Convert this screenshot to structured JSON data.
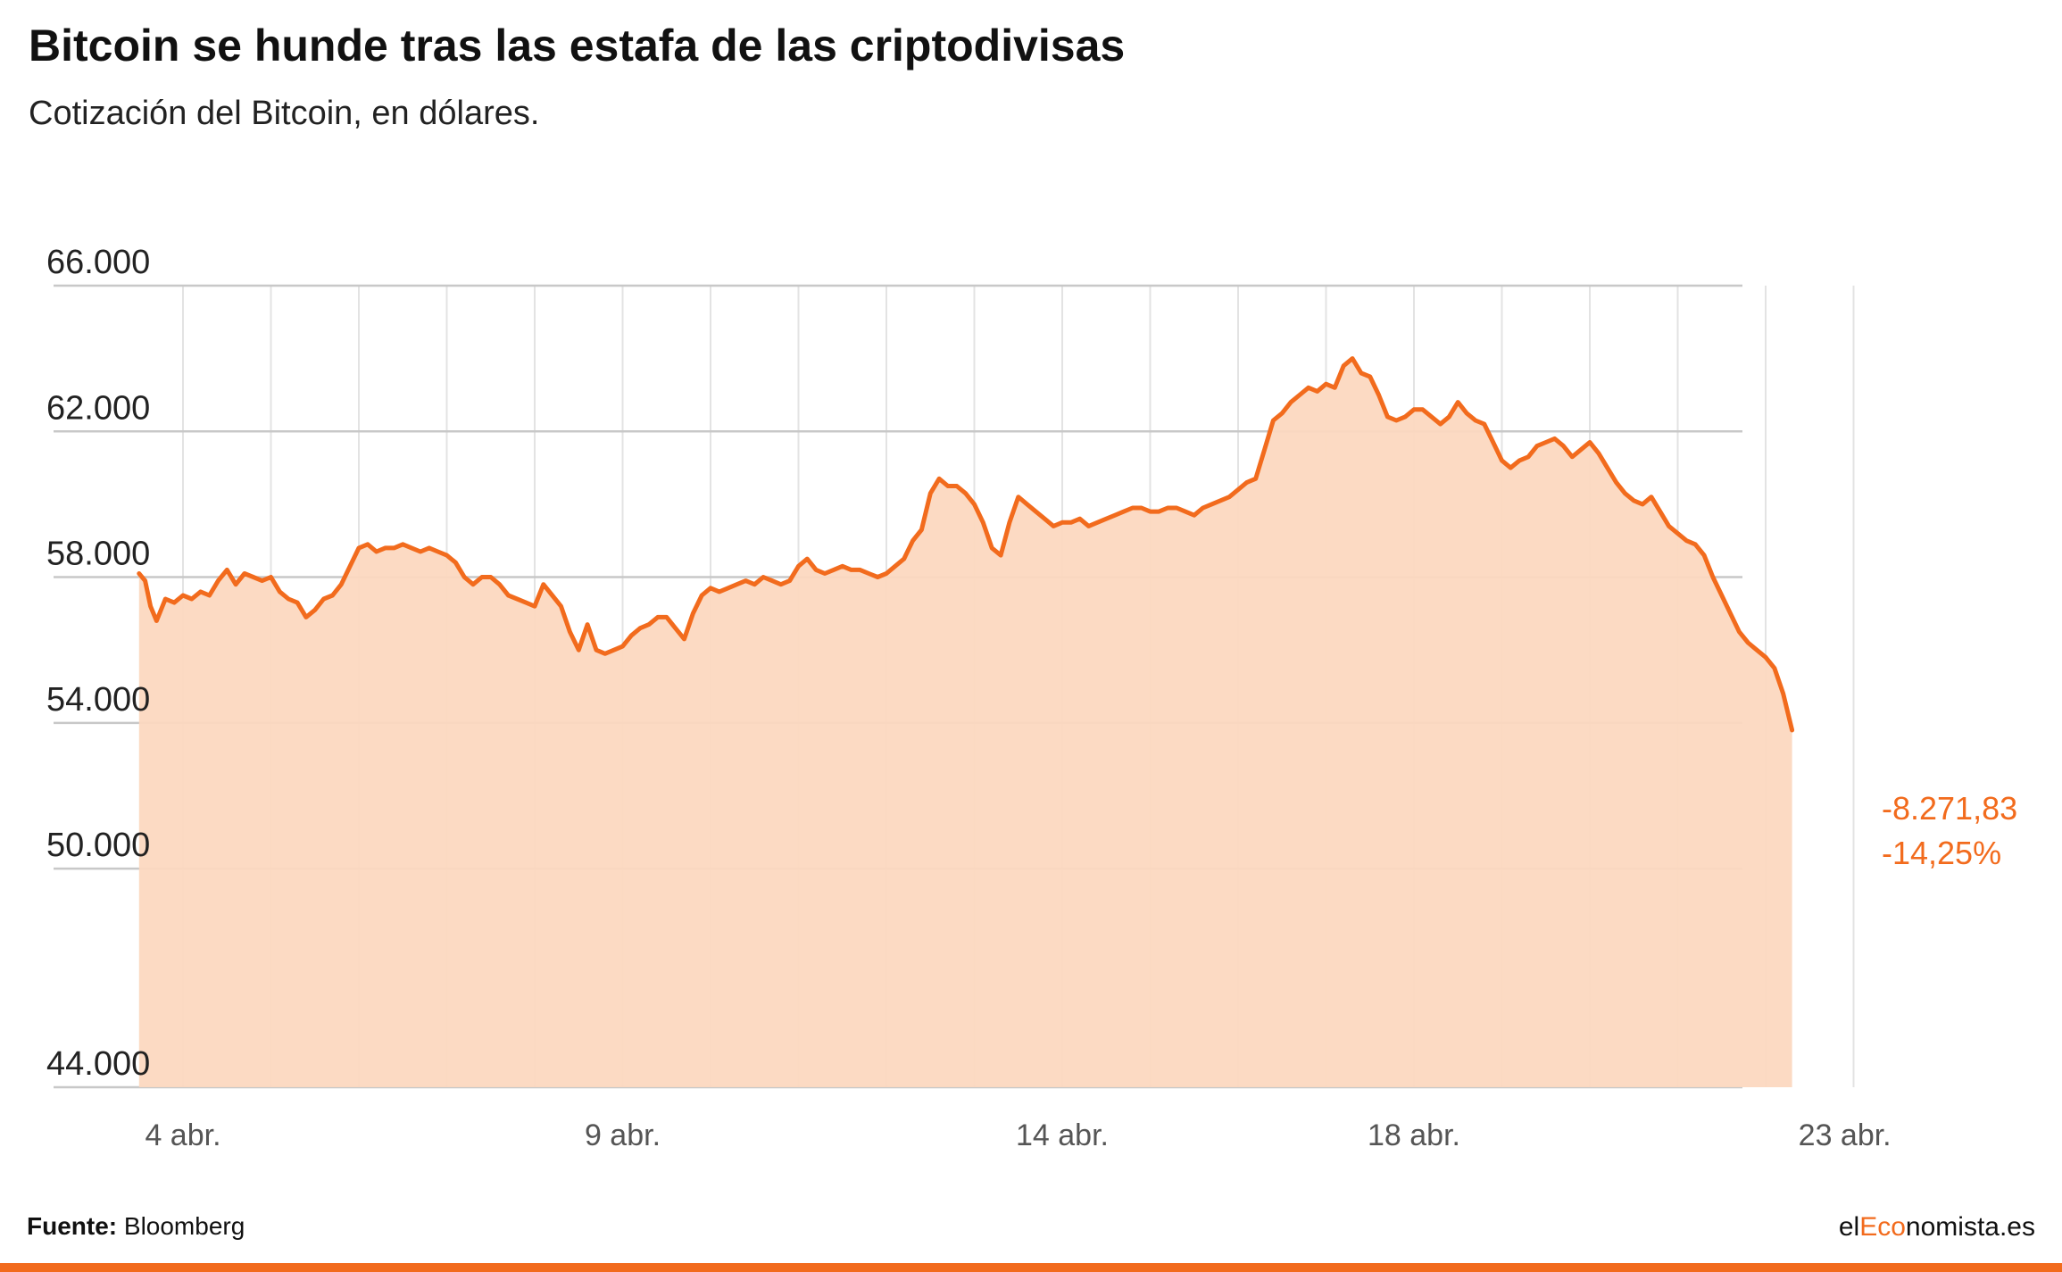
{
  "title": "Bitcoin se hunde tras las estafa de las criptodivisas",
  "subtitle": "Cotización del Bitcoin, en dólares.",
  "source_label": "Fuente:",
  "source_value": "Bloomberg",
  "brand": {
    "prefix": "el",
    "accent": "Eco",
    "suffix": "nomista.es"
  },
  "colors": {
    "line": "#f26b1d",
    "area": "#fcd8c0",
    "grid": "#c8c8c8",
    "annotation": "#f26b1d",
    "bar": "#f26b1d"
  },
  "annotation": {
    "change": "-8.271,83",
    "percent": "-14,25%"
  },
  "chart_data": {
    "type": "area",
    "title": "Bitcoin se hunde tras las estafa de las criptodivisas",
    "subtitle": "Cotización del Bitcoin, en dólares.",
    "xlabel": "",
    "ylabel": "",
    "x_unit": "days from 3 abr.",
    "xlim": [
      0,
      19.9
    ],
    "ylim": [
      44000,
      66000
    ],
    "y_ticks": [
      44000,
      50000,
      54000,
      58000,
      62000,
      66000
    ],
    "y_tick_labels": [
      "44.000",
      "50.000",
      "54.000",
      "58.000",
      "62.000",
      "66.000"
    ],
    "x_tick_labels": [
      {
        "x": 0.5,
        "label": "4 abr."
      },
      {
        "x": 5.5,
        "label": "9 abr."
      },
      {
        "x": 10.5,
        "label": "14 abr."
      },
      {
        "x": 14.5,
        "label": "18 abr."
      },
      {
        "x": 19.4,
        "label": "23 abr."
      }
    ],
    "grid": true,
    "series": [
      {
        "values": [
          [
            0.0,
            58100
          ],
          [
            0.07,
            57900
          ],
          [
            0.13,
            57200
          ],
          [
            0.2,
            56800
          ],
          [
            0.3,
            57400
          ],
          [
            0.4,
            57300
          ],
          [
            0.5,
            57500
          ],
          [
            0.6,
            57400
          ],
          [
            0.7,
            57600
          ],
          [
            0.8,
            57500
          ],
          [
            0.9,
            57900
          ],
          [
            1.0,
            58200
          ],
          [
            1.1,
            57800
          ],
          [
            1.2,
            58100
          ],
          [
            1.3,
            58000
          ],
          [
            1.4,
            57900
          ],
          [
            1.5,
            58000
          ],
          [
            1.6,
            57600
          ],
          [
            1.7,
            57400
          ],
          [
            1.8,
            57300
          ],
          [
            1.9,
            56900
          ],
          [
            2.0,
            57100
          ],
          [
            2.1,
            57400
          ],
          [
            2.2,
            57500
          ],
          [
            2.3,
            57800
          ],
          [
            2.4,
            58300
          ],
          [
            2.5,
            58800
          ],
          [
            2.6,
            58900
          ],
          [
            2.7,
            58700
          ],
          [
            2.8,
            58800
          ],
          [
            2.9,
            58800
          ],
          [
            3.0,
            58900
          ],
          [
            3.1,
            58800
          ],
          [
            3.2,
            58700
          ],
          [
            3.3,
            58800
          ],
          [
            3.4,
            58700
          ],
          [
            3.5,
            58600
          ],
          [
            3.6,
            58400
          ],
          [
            3.7,
            58000
          ],
          [
            3.8,
            57800
          ],
          [
            3.9,
            58000
          ],
          [
            4.0,
            58000
          ],
          [
            4.1,
            57800
          ],
          [
            4.2,
            57500
          ],
          [
            4.3,
            57400
          ],
          [
            4.4,
            57300
          ],
          [
            4.5,
            57200
          ],
          [
            4.6,
            57800
          ],
          [
            4.7,
            57500
          ],
          [
            4.8,
            57200
          ],
          [
            4.9,
            56500
          ],
          [
            5.0,
            56000
          ],
          [
            5.1,
            56700
          ],
          [
            5.2,
            56000
          ],
          [
            5.3,
            55900
          ],
          [
            5.4,
            56000
          ],
          [
            5.5,
            56100
          ],
          [
            5.6,
            56400
          ],
          [
            5.7,
            56600
          ],
          [
            5.8,
            56700
          ],
          [
            5.9,
            56900
          ],
          [
            6.0,
            56900
          ],
          [
            6.1,
            56600
          ],
          [
            6.2,
            56300
          ],
          [
            6.3,
            57000
          ],
          [
            6.4,
            57500
          ],
          [
            6.5,
            57700
          ],
          [
            6.6,
            57600
          ],
          [
            6.7,
            57700
          ],
          [
            6.8,
            57800
          ],
          [
            6.9,
            57900
          ],
          [
            7.0,
            57800
          ],
          [
            7.1,
            58000
          ],
          [
            7.2,
            57900
          ],
          [
            7.3,
            57800
          ],
          [
            7.4,
            57900
          ],
          [
            7.5,
            58300
          ],
          [
            7.6,
            58500
          ],
          [
            7.7,
            58200
          ],
          [
            7.8,
            58100
          ],
          [
            7.9,
            58200
          ],
          [
            8.0,
            58300
          ],
          [
            8.1,
            58200
          ],
          [
            8.2,
            58200
          ],
          [
            8.3,
            58100
          ],
          [
            8.4,
            58000
          ],
          [
            8.5,
            58100
          ],
          [
            8.6,
            58300
          ],
          [
            8.7,
            58500
          ],
          [
            8.8,
            59000
          ],
          [
            8.9,
            59300
          ],
          [
            9.0,
            60300
          ],
          [
            9.1,
            60700
          ],
          [
            9.2,
            60500
          ],
          [
            9.3,
            60500
          ],
          [
            9.4,
            60300
          ],
          [
            9.5,
            60000
          ],
          [
            9.6,
            59500
          ],
          [
            9.7,
            58800
          ],
          [
            9.8,
            58600
          ],
          [
            9.9,
            59500
          ],
          [
            10.0,
            60200
          ],
          [
            10.1,
            60000
          ],
          [
            10.2,
            59800
          ],
          [
            10.3,
            59600
          ],
          [
            10.4,
            59400
          ],
          [
            10.5,
            59500
          ],
          [
            10.6,
            59500
          ],
          [
            10.7,
            59600
          ],
          [
            10.8,
            59400
          ],
          [
            10.9,
            59500
          ],
          [
            11.0,
            59600
          ],
          [
            11.1,
            59700
          ],
          [
            11.2,
            59800
          ],
          [
            11.3,
            59900
          ],
          [
            11.4,
            59900
          ],
          [
            11.5,
            59800
          ],
          [
            11.6,
            59800
          ],
          [
            11.7,
            59900
          ],
          [
            11.8,
            59900
          ],
          [
            11.9,
            59800
          ],
          [
            12.0,
            59700
          ],
          [
            12.1,
            59900
          ],
          [
            12.2,
            60000
          ],
          [
            12.3,
            60100
          ],
          [
            12.4,
            60200
          ],
          [
            12.5,
            60400
          ],
          [
            12.6,
            60600
          ],
          [
            12.7,
            60700
          ],
          [
            12.8,
            61500
          ],
          [
            12.9,
            62300
          ],
          [
            13.0,
            62500
          ],
          [
            13.1,
            62800
          ],
          [
            13.2,
            63000
          ],
          [
            13.3,
            63200
          ],
          [
            13.4,
            63100
          ],
          [
            13.5,
            63300
          ],
          [
            13.6,
            63200
          ],
          [
            13.7,
            63800
          ],
          [
            13.8,
            64000
          ],
          [
            13.9,
            63600
          ],
          [
            14.0,
            63500
          ],
          [
            14.1,
            63000
          ],
          [
            14.2,
            62400
          ],
          [
            14.3,
            62300
          ],
          [
            14.4,
            62400
          ],
          [
            14.5,
            62600
          ],
          [
            14.6,
            62600
          ],
          [
            14.7,
            62400
          ],
          [
            14.8,
            62200
          ],
          [
            14.9,
            62400
          ],
          [
            15.0,
            62800
          ],
          [
            15.1,
            62500
          ],
          [
            15.2,
            62300
          ],
          [
            15.3,
            62200
          ],
          [
            15.4,
            61700
          ],
          [
            15.5,
            61200
          ],
          [
            15.6,
            61000
          ],
          [
            15.7,
            61200
          ],
          [
            15.8,
            61300
          ],
          [
            15.9,
            61600
          ],
          [
            16.0,
            61700
          ],
          [
            16.1,
            61800
          ],
          [
            16.2,
            61600
          ],
          [
            16.3,
            61300
          ],
          [
            16.4,
            61500
          ],
          [
            16.5,
            61700
          ],
          [
            16.6,
            61400
          ],
          [
            16.7,
            61000
          ],
          [
            16.8,
            60600
          ],
          [
            16.9,
            60300
          ],
          [
            17.0,
            60100
          ],
          [
            17.1,
            60000
          ],
          [
            17.2,
            60200
          ],
          [
            17.3,
            59800
          ],
          [
            17.4,
            59400
          ],
          [
            17.5,
            59200
          ],
          [
            17.6,
            59000
          ],
          [
            17.7,
            58900
          ],
          [
            17.8,
            58600
          ],
          [
            17.9,
            58000
          ],
          [
            18.0,
            57500
          ],
          [
            18.1,
            57000
          ],
          [
            18.2,
            56500
          ],
          [
            18.3,
            56200
          ],
          [
            18.4,
            56000
          ],
          [
            18.5,
            55800
          ],
          [
            18.6,
            55500
          ],
          [
            18.7,
            54800
          ],
          [
            18.8,
            53800
          ]
        ]
      }
    ],
    "annotations": [
      "-8.271,83",
      "-14,25%"
    ]
  }
}
